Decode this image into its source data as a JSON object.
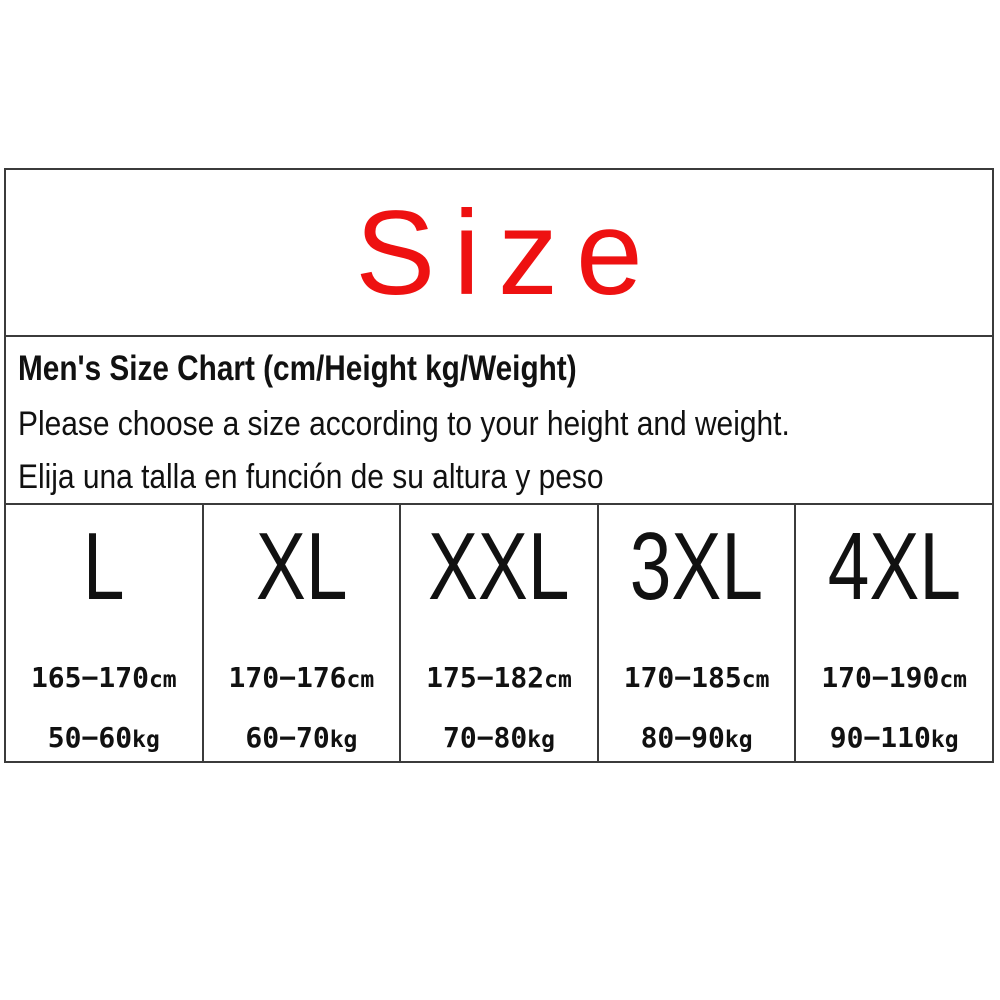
{
  "banner": {
    "title": "Size",
    "title_color": "#ee1111"
  },
  "info": {
    "heading": "Men's Size Chart (cm/Height kg/Weight)",
    "line_en": "Please choose a size according to your height and weight.",
    "line_es": "Elija una talla en función de su altura y peso"
  },
  "chart_data": {
    "type": "table",
    "title": "Men's Size Chart (cm/Height kg/Weight)",
    "columns": [
      "size",
      "height_cm",
      "weight_kg"
    ],
    "rows": [
      {
        "size": "L",
        "height": "165−170",
        "height_unit": "cm",
        "weight": "50−60",
        "weight_unit": "kg"
      },
      {
        "size": "XL",
        "height": "170−176",
        "height_unit": "cm",
        "weight": "60−70",
        "weight_unit": "kg"
      },
      {
        "size": "XXL",
        "height": "175−182",
        "height_unit": "cm",
        "weight": "70−80",
        "weight_unit": "kg"
      },
      {
        "size": "3XL",
        "height": "170−185",
        "height_unit": "cm",
        "weight": "80−90",
        "weight_unit": "kg"
      },
      {
        "size": "4XL",
        "height": "170−190",
        "height_unit": "cm",
        "weight": "90−110",
        "weight_unit": "kg"
      }
    ]
  }
}
